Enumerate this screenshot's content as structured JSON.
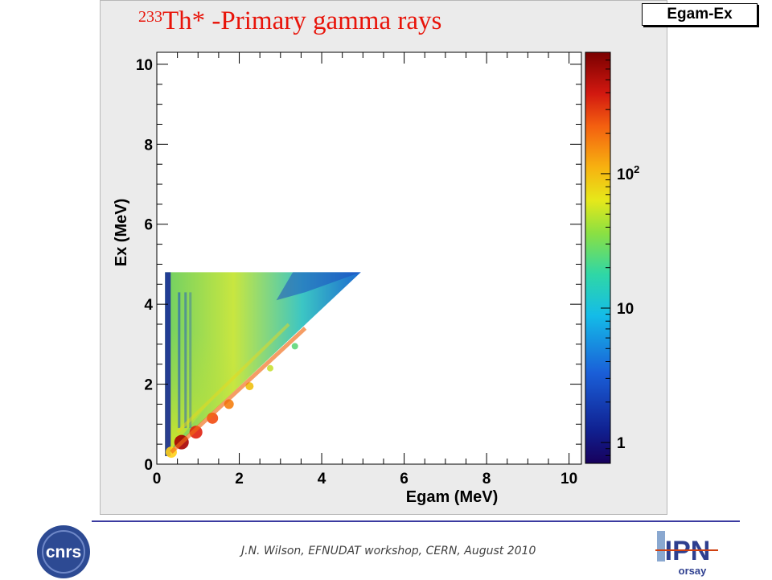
{
  "slide": {
    "title_superscript": "233",
    "title_main": "Th* -Primary gamma rays",
    "footer": "J.N. Wilson,  EFNUDAT workshop, CERN, August 2010",
    "logos": [
      {
        "name": "cnrs-logo",
        "text": "cnrs"
      },
      {
        "name": "ipn-orsay-logo",
        "text": "IPN",
        "subtext": "orsay"
      }
    ]
  },
  "chart_data": {
    "type": "heatmap",
    "title": "Egam-Ex",
    "xlabel": "Egam (MeV)",
    "ylabel": "Ex (MeV)",
    "xlim": [
      0,
      10.3
    ],
    "ylim": [
      0,
      10.3
    ],
    "x_ticks": [
      "0",
      "2",
      "4",
      "6",
      "8",
      "10"
    ],
    "y_ticks": [
      "0",
      "2",
      "4",
      "6",
      "8",
      "10"
    ],
    "x_tick_values": [
      0,
      2,
      4,
      6,
      8,
      10
    ],
    "y_tick_values": [
      0,
      2,
      4,
      6,
      8,
      10
    ],
    "color_scale": "log",
    "z_range": [
      0.7,
      800
    ],
    "colorbar_ticks": [
      {
        "value": 1,
        "label": "1"
      },
      {
        "value": 10,
        "label": "10"
      },
      {
        "value": 100,
        "label": "10",
        "sup": "2"
      }
    ],
    "populated_region": {
      "shape": "triangle",
      "description": "counts only where Egam <= Ex",
      "egam_min": 0.2,
      "ex_min": 0.2,
      "ex_max": 4.8
    }
  }
}
